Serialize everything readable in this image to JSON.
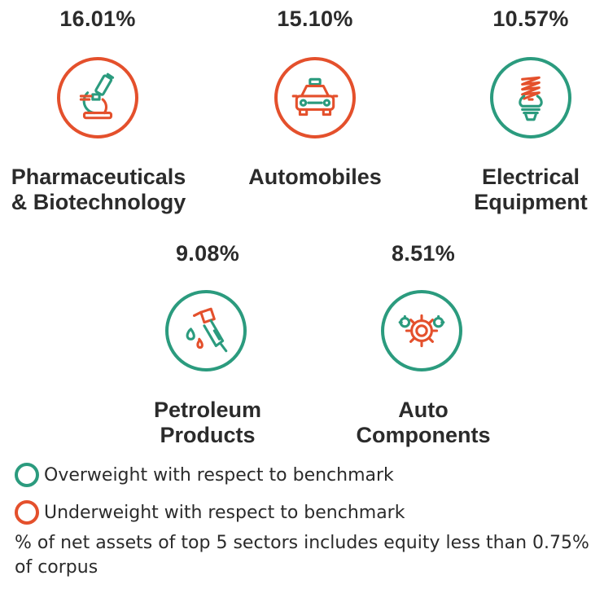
{
  "sectors": [
    {
      "name_line1": "Pharmaceuticals",
      "name_line2": "& Biotechnology",
      "percent": "16.01%",
      "weight": "underweight",
      "icon": "microscope-icon"
    },
    {
      "name_line1": "Automobiles",
      "name_line2": "",
      "percent": "15.10%",
      "weight": "underweight",
      "icon": "car-icon"
    },
    {
      "name_line1": "Electrical",
      "name_line2": "Equipment",
      "percent": "10.57%",
      "weight": "overweight",
      "icon": "light-bulb-icon"
    },
    {
      "name_line1": "Petroleum",
      "name_line2": "Products",
      "percent": "9.08%",
      "weight": "overweight",
      "icon": "fuel-nozzle-icon"
    },
    {
      "name_line1": "Auto",
      "name_line2": "Components",
      "percent": "8.51%",
      "weight": "overweight",
      "icon": "gears-icon"
    }
  ],
  "legend": {
    "overweight": "Overweight with respect to benchmark",
    "underweight": "Underweight with respect to benchmark"
  },
  "footnote": "% of net assets of top 5 sectors includes equity less than 0.75% of corpus",
  "colors": {
    "overweight": "#2b9b7e",
    "underweight": "#e4502c",
    "text": "#2b2b2b"
  }
}
